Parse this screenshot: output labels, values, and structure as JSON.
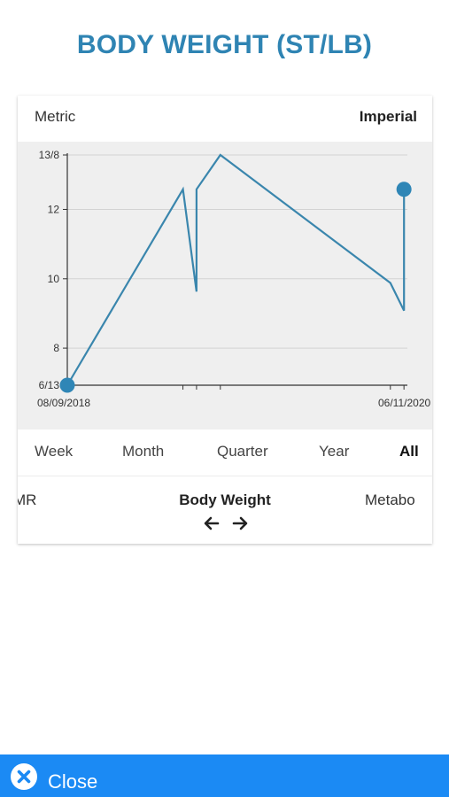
{
  "title": "BODY WEIGHT (ST/LB)",
  "units": {
    "metric": "Metric",
    "imperial": "Imperial",
    "active": "imperial"
  },
  "chart_data": {
    "type": "line",
    "y_ticks": [
      "6/13",
      "8",
      "10",
      "12",
      "13/8"
    ],
    "x_labels": [
      "08/09/2018",
      "06/11/2020"
    ],
    "ylim": [
      6.93,
      13.57
    ],
    "x": [
      0.0,
      0.34,
      0.38,
      0.38,
      0.45,
      0.95,
      0.99,
      0.99
    ],
    "values": [
      6.93,
      12.58,
      9.63,
      12.58,
      13.57,
      9.88,
      9.08,
      12.58
    ],
    "grid": true,
    "line_color": "#3a86ad",
    "marker_color": "#2f86b6"
  },
  "periods": [
    "Week",
    "Month",
    "Quarter",
    "Year",
    "All"
  ],
  "active_period": "All",
  "metrics": {
    "prev": "MR",
    "current": "Body Weight",
    "next": "Metabo"
  },
  "icons": {
    "left": "arrow-left-icon",
    "right": "arrow-right-icon",
    "close": "close-icon"
  },
  "close_label": "Close"
}
